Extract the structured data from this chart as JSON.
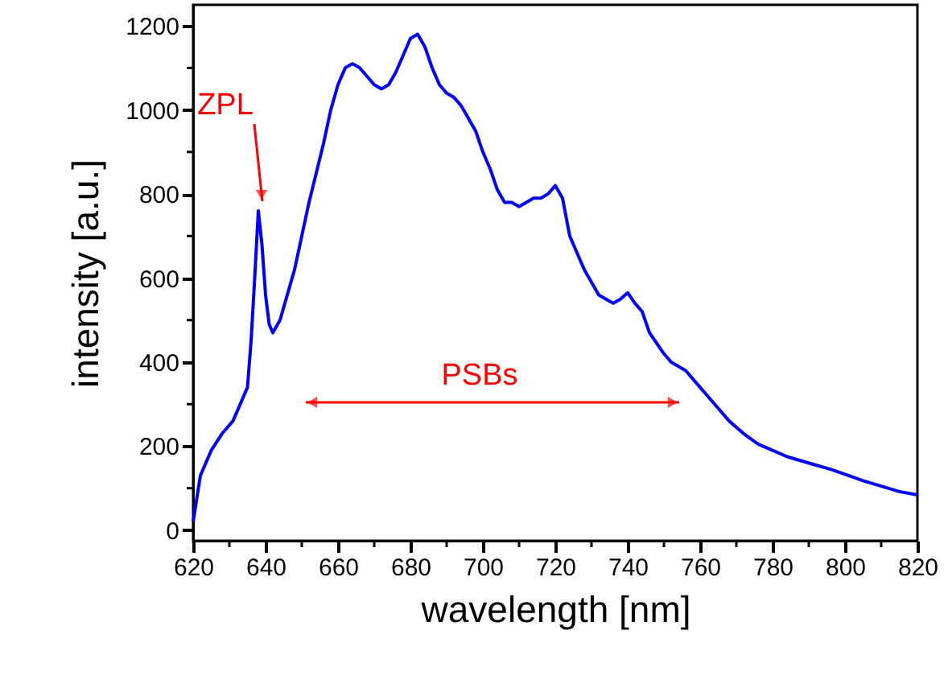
{
  "chart_data": {
    "type": "line",
    "xlabel": "wavelength [nm]",
    "ylabel": "intensity [a.u.]",
    "x": [
      620,
      622,
      625,
      628,
      631,
      633,
      635,
      636,
      637,
      638,
      639,
      640,
      641,
      642,
      644,
      646,
      648,
      650,
      652,
      654,
      656,
      658,
      660,
      662,
      664,
      666,
      668,
      670,
      672,
      674,
      676,
      678,
      680,
      682,
      684,
      686,
      688,
      690,
      692,
      694,
      696,
      698,
      700,
      702,
      704,
      706,
      708,
      710,
      712,
      714,
      716,
      718,
      720,
      722,
      724,
      726,
      728,
      730,
      732,
      734,
      736,
      738,
      740,
      742,
      744,
      746,
      748,
      750,
      752,
      756,
      760,
      764,
      768,
      772,
      776,
      780,
      784,
      788,
      792,
      796,
      800,
      805,
      810,
      815,
      820
    ],
    "series": [
      {
        "color": "#0000ff",
        "values": [
          20,
          130,
          190,
          230,
          260,
          300,
          340,
          450,
          600,
          760,
          680,
          560,
          490,
          470,
          500,
          560,
          620,
          700,
          780,
          850,
          920,
          1000,
          1060,
          1100,
          1110,
          1100,
          1080,
          1060,
          1050,
          1060,
          1090,
          1130,
          1170,
          1180,
          1150,
          1100,
          1060,
          1040,
          1030,
          1010,
          980,
          950,
          900,
          860,
          810,
          780,
          780,
          770,
          780,
          790,
          790,
          800,
          820,
          790,
          700,
          660,
          620,
          590,
          560,
          550,
          540,
          550,
          565,
          540,
          520,
          470,
          445,
          420,
          400,
          380,
          340,
          300,
          260,
          230,
          205,
          190,
          175,
          165,
          155,
          145,
          133,
          118,
          105,
          92,
          84
        ]
      }
    ],
    "xlim": [
      620,
      820
    ],
    "ylim": [
      -25,
      1250
    ],
    "xticks": [
      620,
      {
        "value": 630,
        "label": null
      },
      640,
      {
        "value": 650,
        "label": null
      },
      660,
      {
        "value": 670,
        "label": null
      },
      680,
      {
        "value": 690,
        "label": null
      },
      700,
      {
        "value": 710,
        "label": null
      },
      720,
      {
        "value": 730,
        "label": null
      },
      740,
      {
        "value": 750,
        "label": null
      },
      760,
      {
        "value": 770,
        "label": null
      },
      780,
      {
        "value": 790,
        "label": null
      },
      800,
      {
        "value": 810,
        "label": null
      },
      820
    ],
    "yticks": [
      0,
      {
        "value": 100,
        "label": null
      },
      200,
      {
        "value": 300,
        "label": null
      },
      400,
      {
        "value": 500,
        "label": null
      },
      600,
      {
        "value": 700,
        "label": null
      },
      800,
      {
        "value": 900,
        "label": null
      },
      1000,
      {
        "value": 1100,
        "label": null
      },
      1200
    ],
    "annotations": [
      "ZPL",
      "PSBs"
    ],
    "grid": false,
    "marker": "none",
    "line_style": "solid"
  }
}
